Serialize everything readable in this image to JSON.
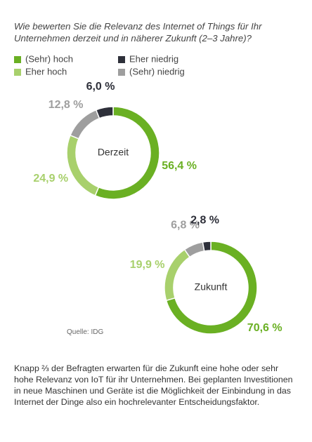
{
  "title": "Wie bewerten Sie die Relevanz des Internet of Things für Ihr Unternehmen derzeit und in näherer Zukunft (2–3 Jahre)?",
  "source": "Quelle: IDG",
  "caption": "Knapp ⅔ der Befragten erwarten für die Zukunft eine hohe oder sehr hohe Relevanz von IoT für ihr Unternehmen. Bei geplanten Investitionen in neue Maschinen und Geräte ist die Möglichkeit der Einbindung in das Internet der Dinge also ein hochrelevanter Entscheidungsfaktor.",
  "chart_data": [
    {
      "type": "pie",
      "title": "Derzeit",
      "categories": [
        "(Sehr) hoch",
        "Eher hoch",
        "(Sehr) niedrig",
        "Eher niedrig"
      ],
      "values": [
        56.4,
        24.9,
        12.8,
        6.0
      ],
      "value_labels": [
        "56,4 %",
        "24,9 %",
        "12,8 %",
        "6,0 %"
      ],
      "colors": [
        "#6ab023",
        "#a8d06c",
        "#9e9e9e",
        "#2e303a"
      ]
    },
    {
      "type": "pie",
      "title": "Zukunft",
      "categories": [
        "(Sehr) hoch",
        "Eher hoch",
        "(Sehr) niedrig",
        "Eher niedrig"
      ],
      "values": [
        70.6,
        19.9,
        6.8,
        2.8
      ],
      "value_labels": [
        "70,6 %",
        "19,9 %",
        "6,8 %",
        "2,8 %"
      ],
      "colors": [
        "#6ab023",
        "#a8d06c",
        "#9e9e9e",
        "#2e303a"
      ]
    }
  ]
}
